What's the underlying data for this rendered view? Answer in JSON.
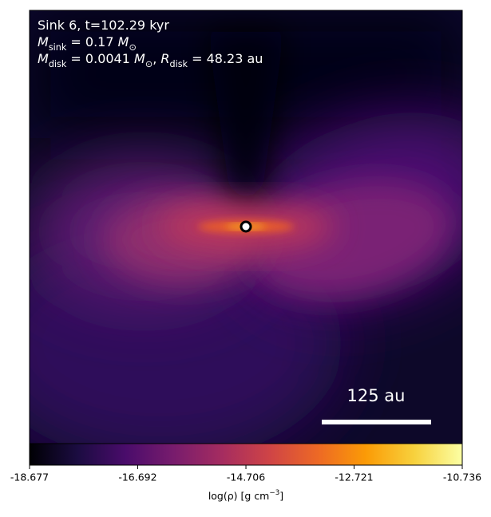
{
  "chart_data": {
    "type": "heatmap",
    "colormap": "inferno",
    "annotations": [
      [
        {
          "text": "Sink 6, t=102.29 kyr"
        }
      ],
      [
        {
          "text": "M",
          "style": "italic"
        },
        {
          "text": "sink",
          "style": "sub"
        },
        {
          "text": " = 0.17 "
        },
        {
          "text": "M",
          "style": "italic"
        },
        {
          "text": "⊙",
          "style": "sub"
        }
      ],
      [
        {
          "text": "M",
          "style": "italic"
        },
        {
          "text": "disk",
          "style": "sub"
        },
        {
          "text": " = 0.0041 "
        },
        {
          "text": "M",
          "style": "italic"
        },
        {
          "text": "⊙",
          "style": "sub"
        },
        {
          "text": ", "
        },
        {
          "text": "R",
          "style": "italic"
        },
        {
          "text": "disk",
          "style": "sub"
        },
        {
          "text": " = 48.23 au"
        }
      ]
    ],
    "scale_bar_label": "125 au",
    "colorbar": {
      "label": [
        {
          "text": "log(ρ) [g cm"
        },
        {
          "text": "−3",
          "style": "sup"
        },
        {
          "text": "]"
        }
      ],
      "clim": [
        -18.677,
        -10.736
      ],
      "ticks": [
        -18.677,
        -16.692,
        -14.706,
        -12.721,
        -10.736
      ]
    }
  }
}
